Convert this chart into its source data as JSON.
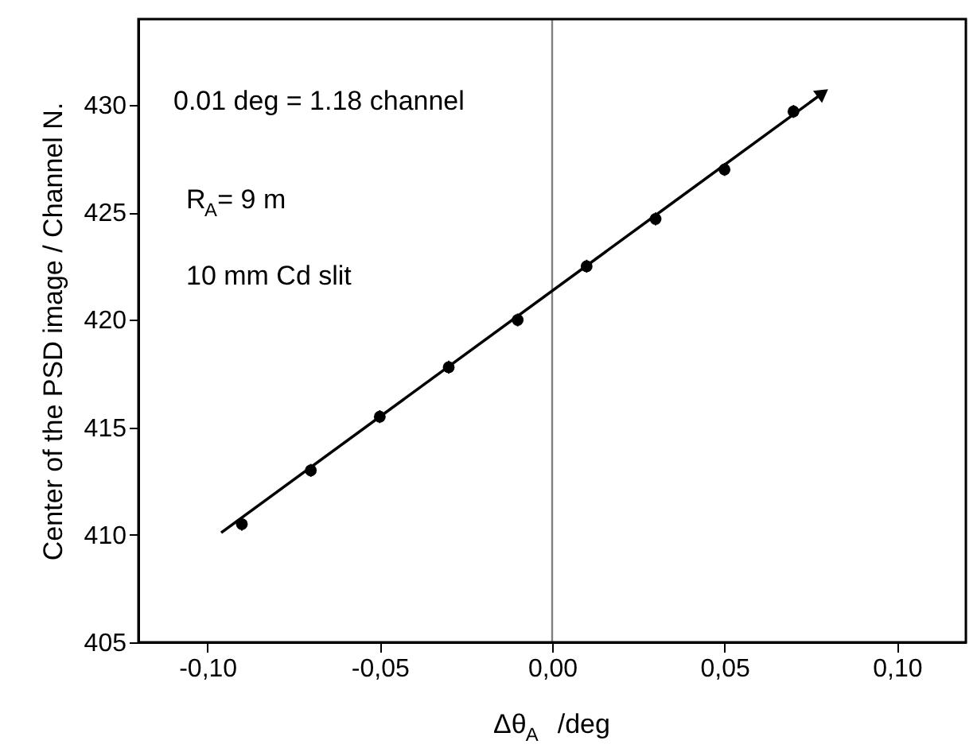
{
  "chart_data": {
    "type": "scatter",
    "xlabel": "Δθ$_{A}$ /deg",
    "ylabel": "Center of the PSD image / Channel N.",
    "x": [
      -0.09,
      -0.07,
      -0.05,
      -0.03,
      -0.01,
      0.01,
      0.03,
      0.05,
      0.07
    ],
    "series": [
      {
        "color": "#000000",
        "marker": "circle",
        "values": [
          410.5,
          413.0,
          415.5,
          417.8,
          420.0,
          422.5,
          424.7,
          427.0,
          429.7
        ],
        "errors": [
          0.3,
          0.3,
          0.3,
          0.3,
          0.3,
          0.3,
          0.3,
          0.3,
          0.3
        ]
      },
      {
        "type": "line",
        "color": "#000000",
        "x": [
          -0.096,
          0.078
        ],
        "values": [
          410.1,
          430.5
        ]
      }
    ],
    "xlim": [
      -0.12,
      0.12
    ],
    "xticks": [
      {
        "value": -0.1,
        "label": "-0,10"
      },
      {
        "value": -0.05,
        "label": "-0,05"
      },
      {
        "value": 0,
        "label": "0,00"
      },
      {
        "value": 0.05,
        "label": "0,05"
      },
      {
        "value": 0.1,
        "label": "0,10"
      }
    ],
    "ylim": [
      405,
      434
    ],
    "yticks": [
      405,
      410,
      415,
      420,
      425,
      430
    ],
    "ref_lines": [
      {
        "axis": "x",
        "value": 0,
        "color": "#808080"
      }
    ],
    "annotations": [
      "0.01 deg = 1.18 channel",
      "R$_{A}$= 9 m",
      "10 mm Cd slit"
    ],
    "grid": false
  }
}
